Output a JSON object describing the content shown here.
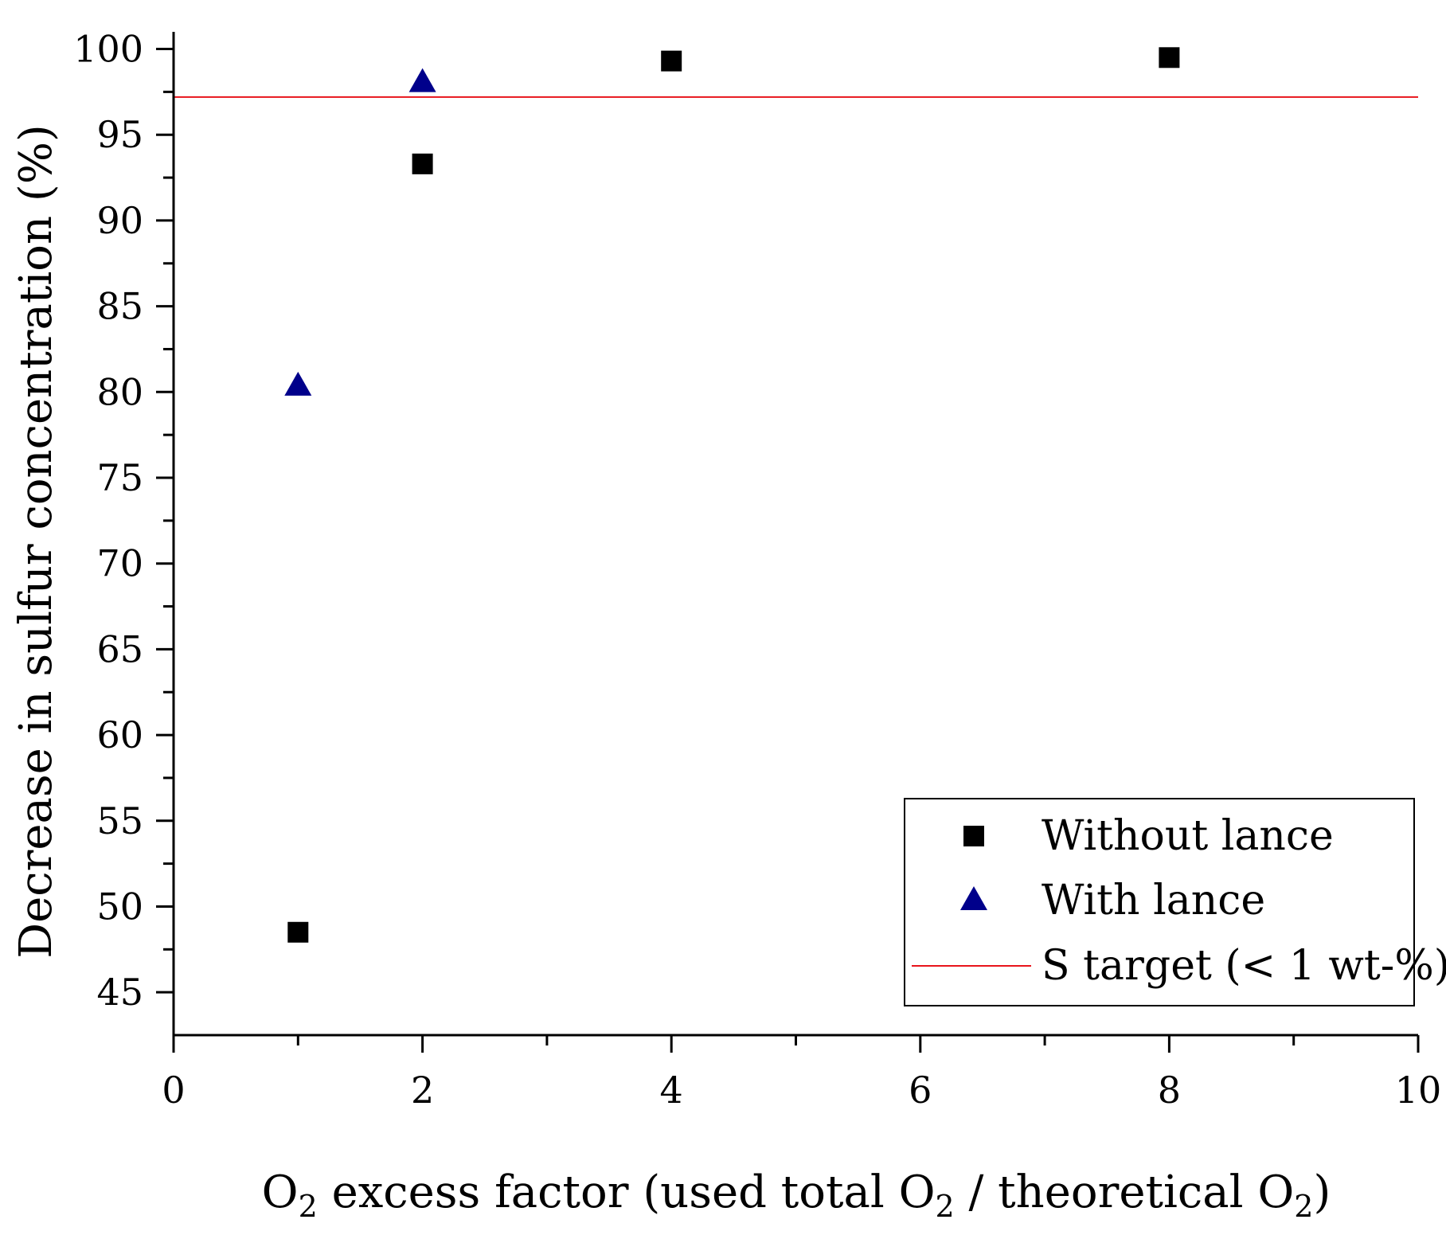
{
  "chart_data": {
    "type": "scatter",
    "xlabel": {
      "pre": "O",
      "sub1": "2",
      "mid": " excess factor (used total O",
      "sub2": "2",
      "mid2": " / theoretical O",
      "sub3": "2",
      "post": ")"
    },
    "ylabel": "Decrease in sulfur concentration (%)",
    "xlim": [
      0,
      10
    ],
    "ylim": [
      42.5,
      101
    ],
    "x_ticks": [
      0,
      2,
      4,
      6,
      8,
      10
    ],
    "x_tick_labels": [
      "0",
      "2",
      "4",
      "6",
      "8",
      "10"
    ],
    "x_minor_ticks": [
      1,
      3,
      5,
      7,
      9
    ],
    "y_ticks": [
      45,
      50,
      55,
      60,
      65,
      70,
      75,
      80,
      85,
      90,
      95,
      100
    ],
    "y_tick_labels": [
      "45",
      "50",
      "55",
      "60",
      "65",
      "70",
      "75",
      "80",
      "85",
      "90",
      "95",
      "100"
    ],
    "y_minor_ticks": [
      47.5,
      52.5,
      57.5,
      62.5,
      67.5,
      72.5,
      77.5,
      82.5,
      87.5,
      92.5,
      97.5
    ],
    "series": [
      {
        "name": "Without lance",
        "marker": "square",
        "color": "#000000",
        "points": [
          {
            "x": 1,
            "y": 48.5
          },
          {
            "x": 2,
            "y": 93.3
          },
          {
            "x": 4,
            "y": 99.3
          },
          {
            "x": 8,
            "y": 99.5
          }
        ]
      },
      {
        "name": "With lance",
        "marker": "triangle",
        "color": "#00008B",
        "points": [
          {
            "x": 1,
            "y": 80.3
          },
          {
            "x": 2,
            "y": 98.0
          }
        ]
      }
    ],
    "reference_line": {
      "name": "S target (< 1 wt-%)",
      "y": 97.2,
      "color": "#E8141B"
    },
    "legend": {
      "position": "bottom-right",
      "entries": [
        "Without lance",
        "With lance",
        "S target (< 1 wt-%)"
      ]
    }
  }
}
